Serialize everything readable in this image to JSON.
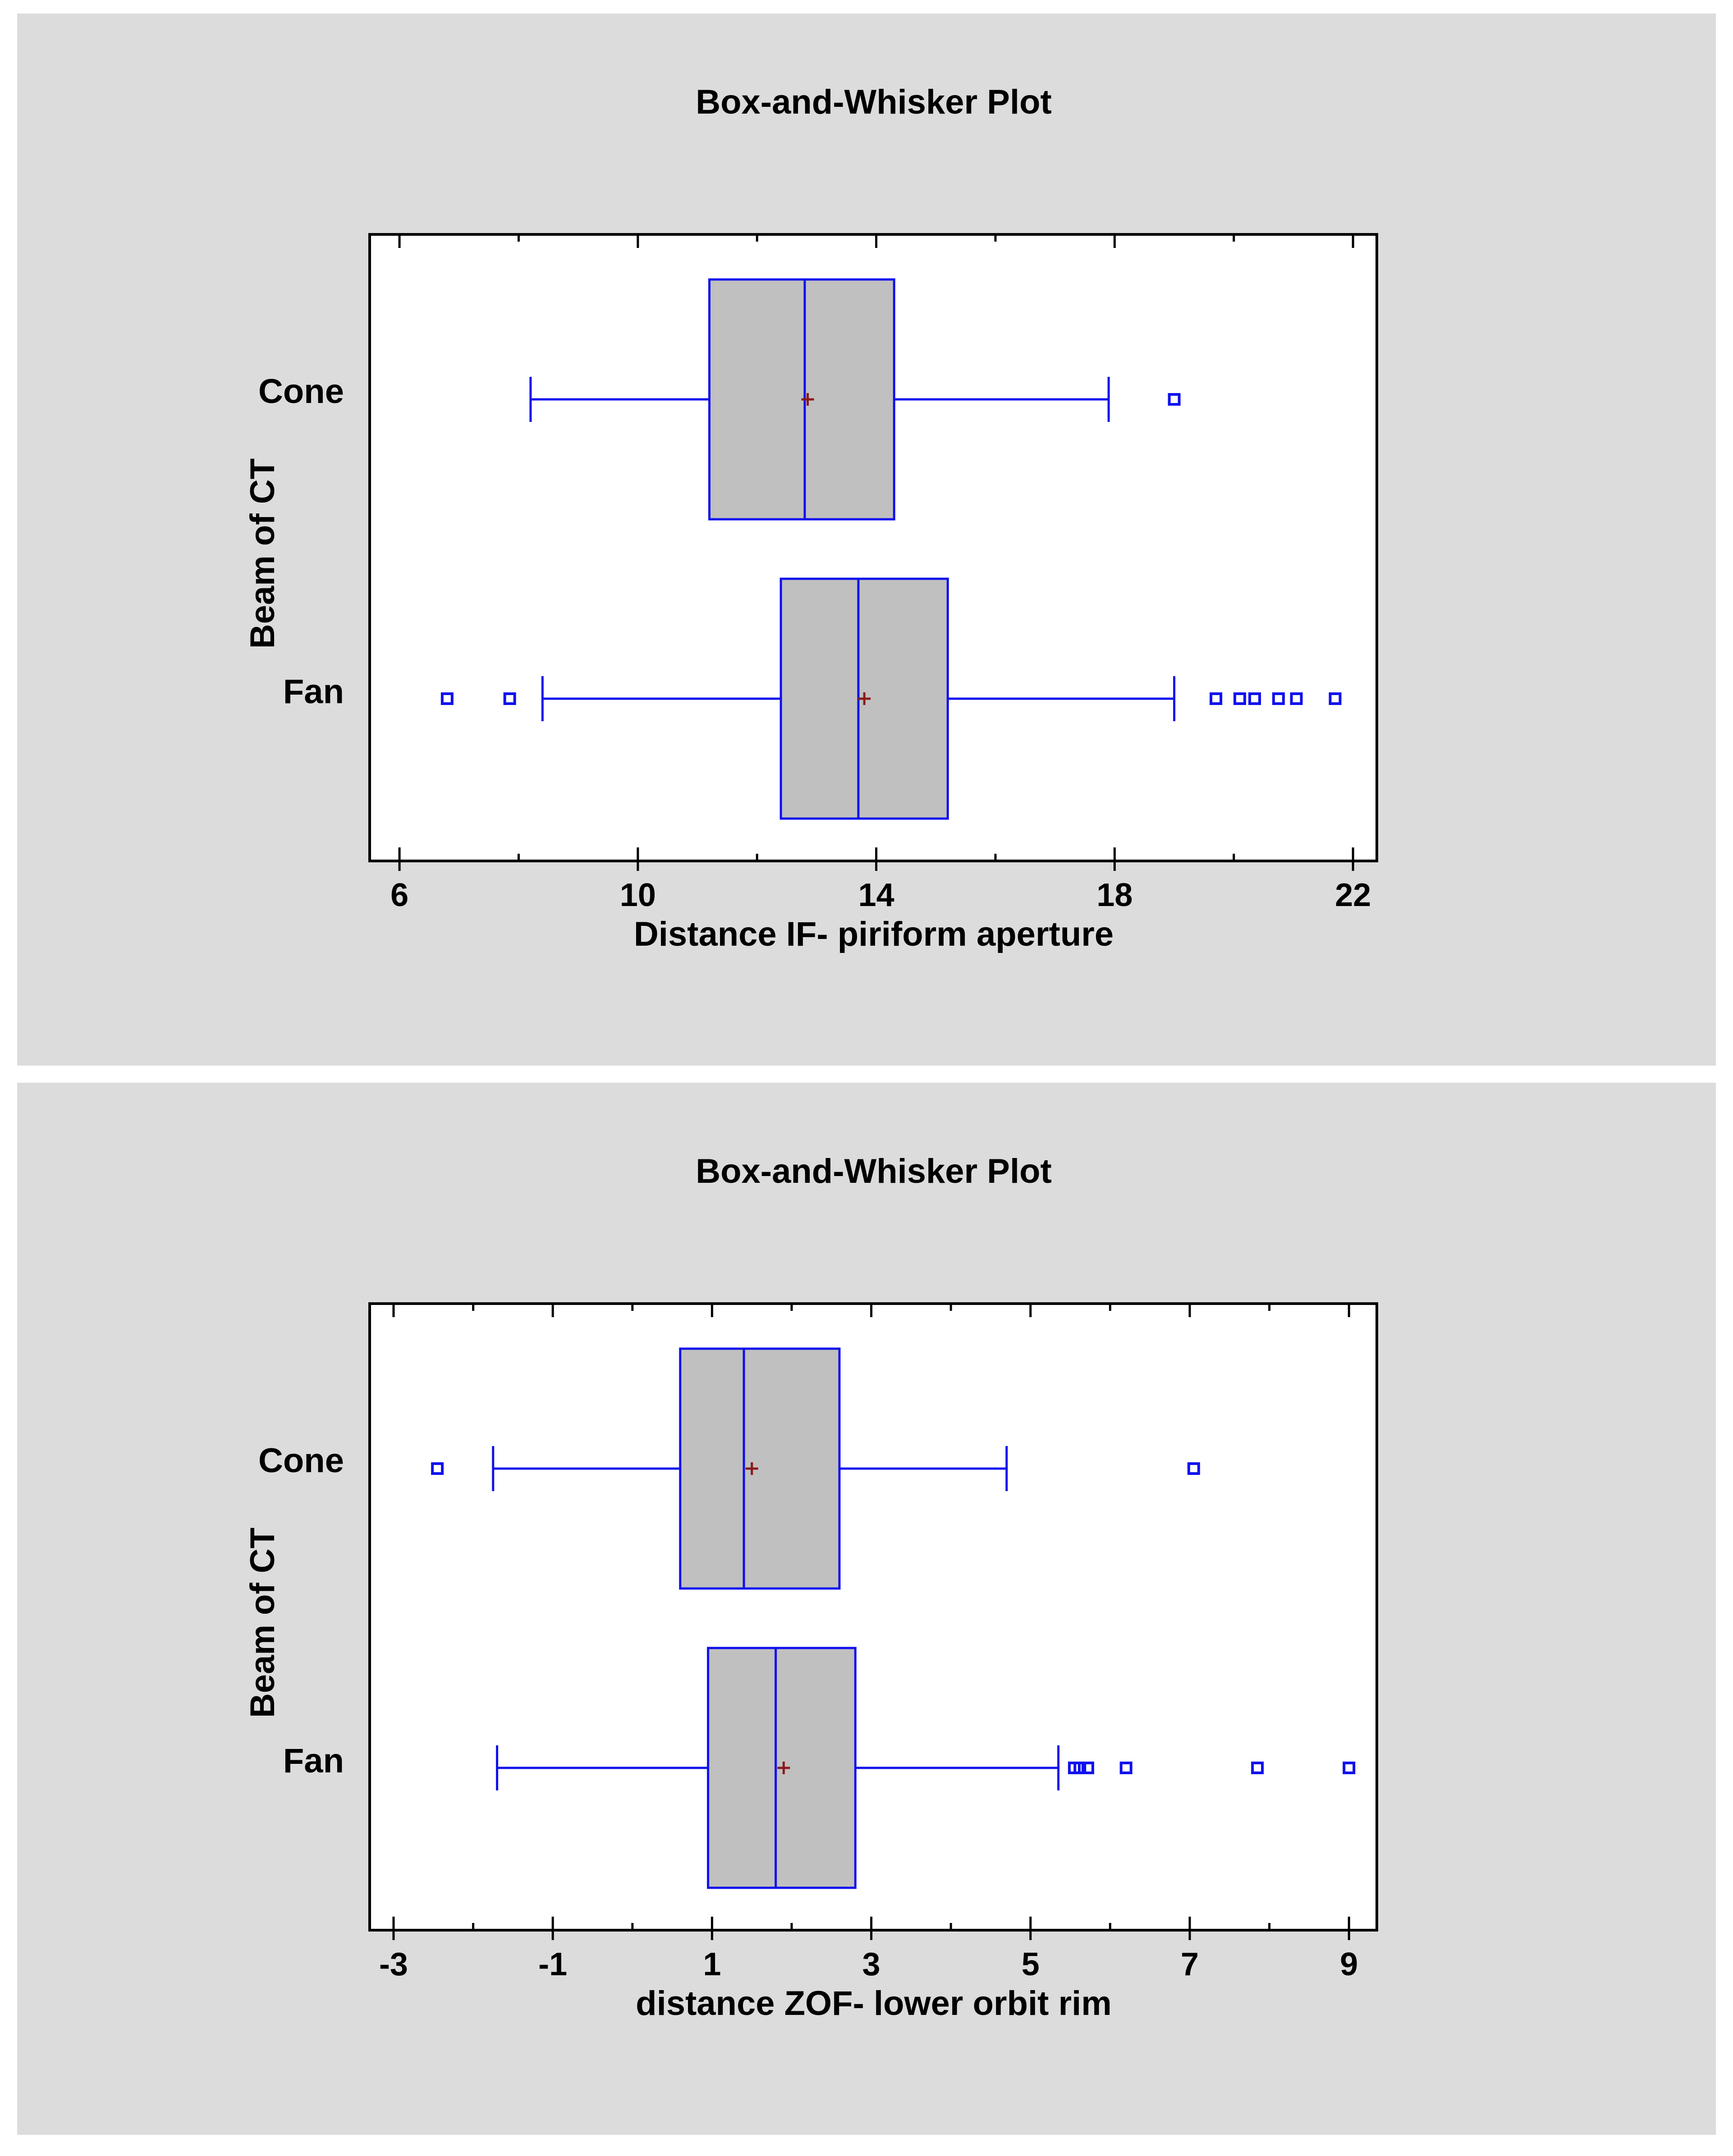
{
  "colors": {
    "panel_background": "#dcdcdc",
    "plot_background": "#ffffff",
    "box_fill": "#c0c0c0",
    "box_stroke": "#1010ee",
    "mean_marker": "#8b1a1a",
    "outlier": "#1010ee",
    "axis": "#000000"
  },
  "chart_data": [
    {
      "type": "boxplot",
      "orientation": "horizontal",
      "title": "Box-and-Whisker Plot",
      "xlabel": "Distance IF- piriform aperture",
      "ylabel": "Beam of CT",
      "xlim": [
        5.5,
        22.4
      ],
      "x_ticks": [
        6,
        10,
        14,
        18,
        22
      ],
      "x_minor_ticks": [
        8,
        12,
        16,
        20
      ],
      "categories": [
        "Cone",
        "Fan"
      ],
      "series": [
        {
          "category": "Cone",
          "whisker_low": 8.2,
          "q1": 11.2,
          "median": 12.8,
          "mean": 12.85,
          "q3": 14.3,
          "whisker_high": 17.9,
          "outliers": [
            19.0
          ]
        },
        {
          "category": "Fan",
          "whisker_low": 8.4,
          "q1": 12.4,
          "median": 13.7,
          "mean": 13.8,
          "q3": 15.2,
          "whisker_high": 19.0,
          "outliers": [
            6.8,
            7.85,
            19.7,
            20.1,
            20.35,
            20.75,
            21.05,
            21.7
          ]
        }
      ]
    },
    {
      "type": "boxplot",
      "orientation": "horizontal",
      "title": "Box-and-Whisker Plot",
      "xlabel": "distance ZOF- lower orbit rim",
      "ylabel": "Beam of CT",
      "xlim": [
        -3.3,
        9.35
      ],
      "x_ticks": [
        -3,
        -1,
        1,
        3,
        5,
        7,
        9
      ],
      "x_minor_ticks": [
        -2,
        0,
        2,
        4,
        6,
        8
      ],
      "categories": [
        "Cone",
        "Fan"
      ],
      "series": [
        {
          "category": "Cone",
          "whisker_low": -1.75,
          "q1": 0.6,
          "median": 1.4,
          "mean": 1.5,
          "q3": 2.6,
          "whisker_high": 4.7,
          "outliers": [
            -2.45,
            7.05
          ]
        },
        {
          "category": "Fan",
          "whisker_low": -1.7,
          "q1": 0.95,
          "median": 1.8,
          "mean": 1.9,
          "q3": 2.8,
          "whisker_high": 5.35,
          "outliers": [
            5.55,
            5.62,
            5.72,
            6.2,
            7.85,
            9.0
          ]
        }
      ]
    }
  ]
}
